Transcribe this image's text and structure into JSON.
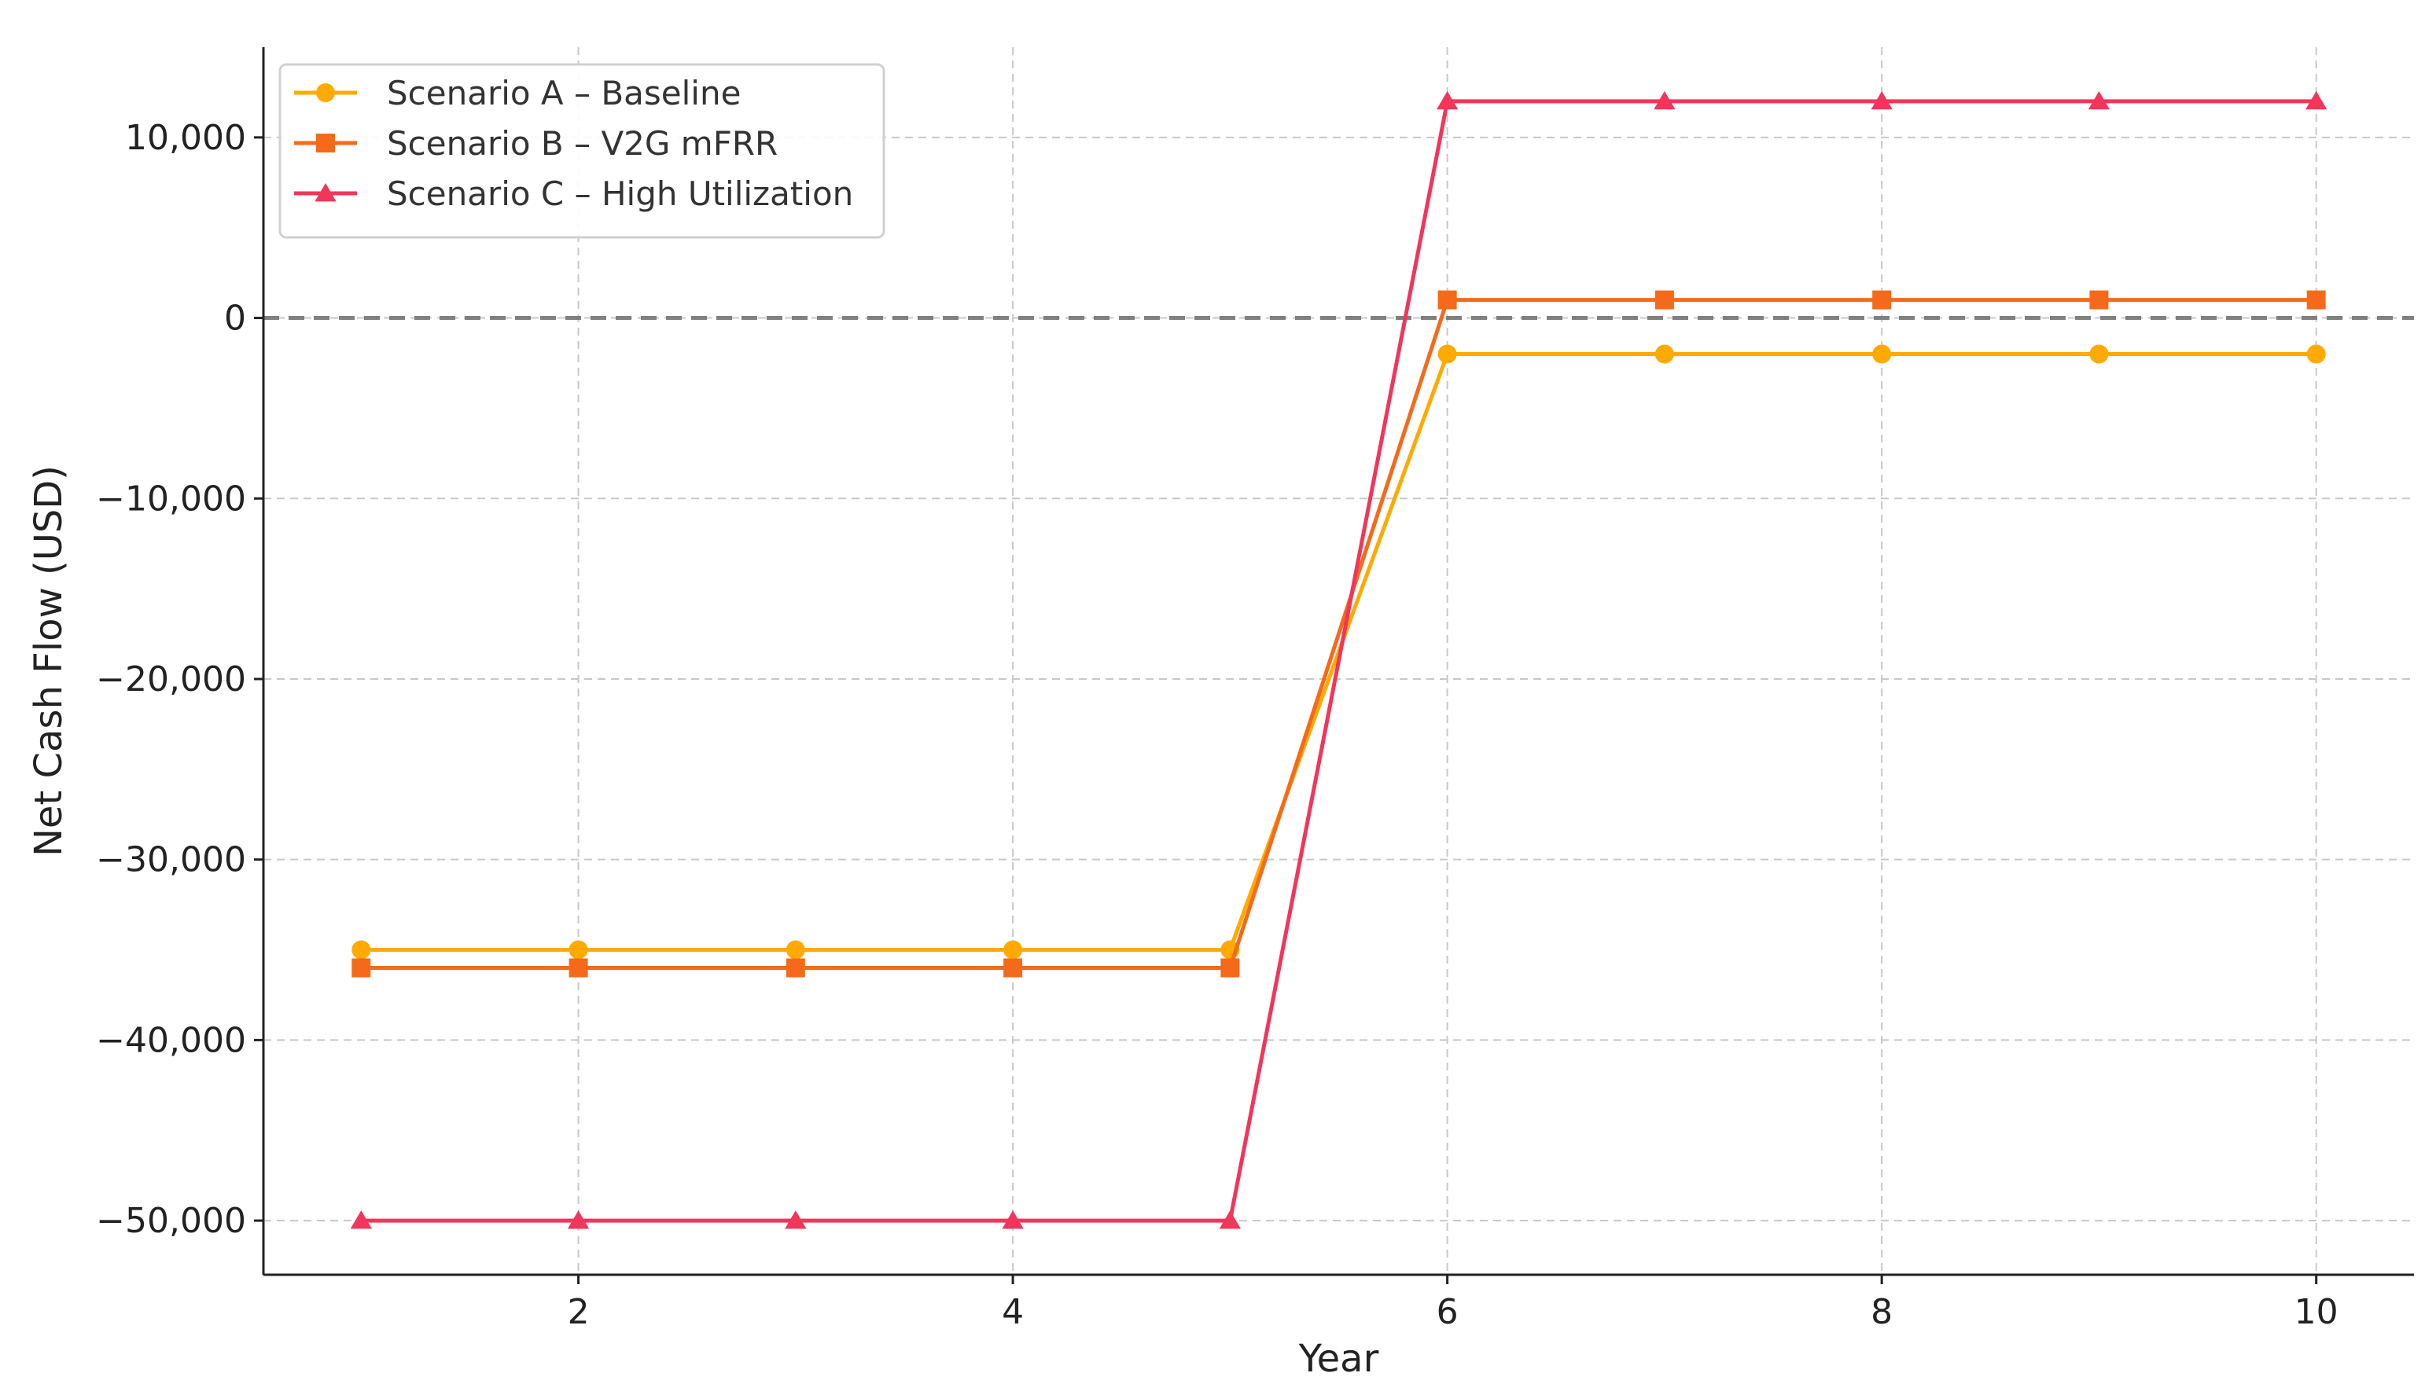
{
  "chart_data": {
    "type": "line",
    "title": "",
    "xlabel": "Year",
    "ylabel": "Net Cash Flow (USD)",
    "x": [
      1,
      2,
      3,
      4,
      5,
      6,
      7,
      8,
      9,
      10
    ],
    "xlim": [
      0.55,
      10.45
    ],
    "ylim": [
      -53000,
      15000
    ],
    "xticks": [
      2,
      4,
      6,
      8,
      10
    ],
    "xtick_labels": [
      "2",
      "4",
      "6",
      "8",
      "10"
    ],
    "yticks": [
      -50000,
      -40000,
      -30000,
      -20000,
      -10000,
      0,
      10000
    ],
    "ytick_labels": [
      "−50,000",
      "−40,000",
      "−30,000",
      "−20,000",
      "−10,000",
      "0",
      "10,000"
    ],
    "grid": true,
    "reference_line": {
      "y": 0,
      "style": "dashed",
      "color": "#808080"
    },
    "legend_position": "top-left",
    "series": [
      {
        "name": "Scenario A – Baseline",
        "color": "#FFAA00",
        "marker": "circle",
        "values": [
          -35000,
          -35000,
          -35000,
          -35000,
          -35000,
          -2000,
          -2000,
          -2000,
          -2000,
          -2000
        ]
      },
      {
        "name": "Scenario B – V2G mFRR",
        "color": "#F56A1A",
        "marker": "square",
        "values": [
          -36000,
          -36000,
          -36000,
          -36000,
          -36000,
          1000,
          1000,
          1000,
          1000,
          1000
        ]
      },
      {
        "name": "Scenario C – High Utilization",
        "color": "#F2355B",
        "marker": "triangle",
        "values": [
          -50000,
          -50000,
          -50000,
          -50000,
          -50000,
          12000,
          12000,
          12000,
          12000,
          12000
        ]
      }
    ]
  }
}
